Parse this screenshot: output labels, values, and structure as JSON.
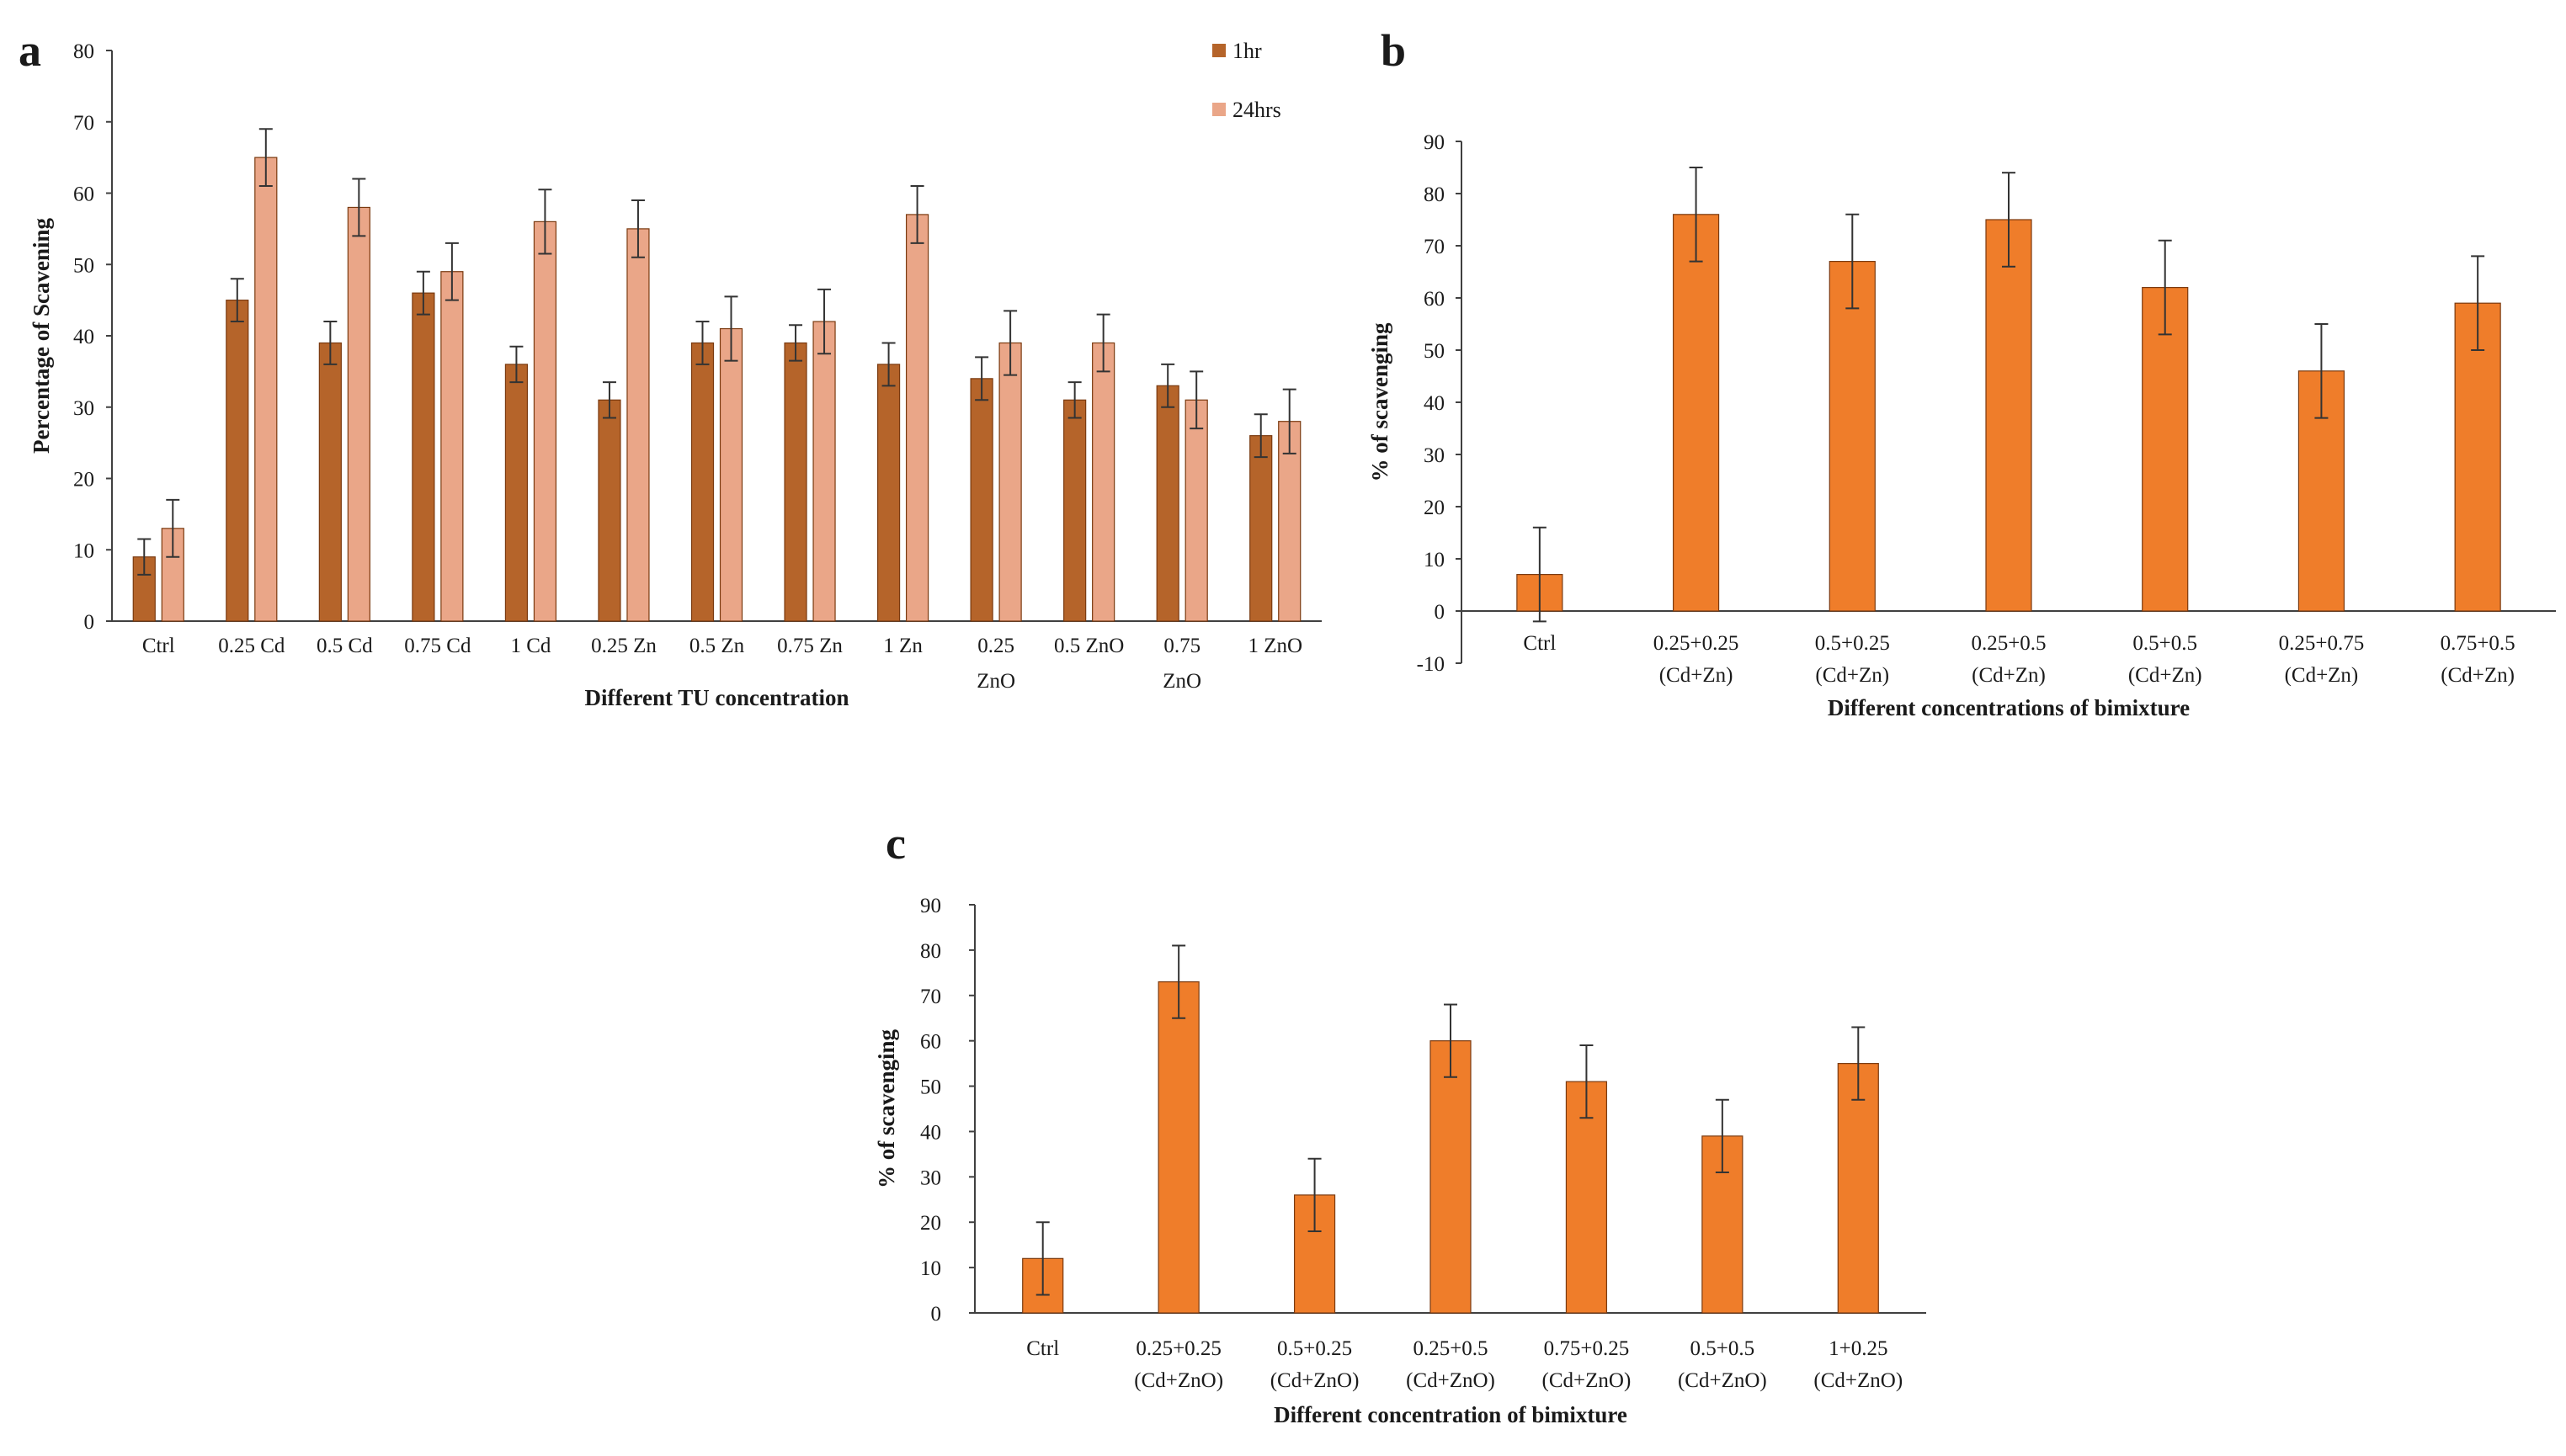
{
  "colors": {
    "bar_1hr": "#b5642a",
    "bar_24hrs": "#eaa688",
    "bar_orange": "#ef7d2a",
    "bar_stroke": "#7a3a10",
    "axis": "#404040",
    "error": "#333333"
  },
  "chart_data": [
    {
      "id": "a",
      "panel_label": "a",
      "type": "bar",
      "title": "",
      "xlabel": "Different TU concentration",
      "ylabel": "Percentage of Scavening",
      "ylim": [
        0,
        80
      ],
      "yticks": [
        0,
        10,
        20,
        30,
        40,
        50,
        60,
        70,
        80
      ],
      "legend_position": "top-right",
      "categories": [
        [
          "Ctrl"
        ],
        [
          "0.25 Cd"
        ],
        [
          "0.5 Cd"
        ],
        [
          "0.75 Cd"
        ],
        [
          "1 Cd"
        ],
        [
          "0.25 Zn"
        ],
        [
          "0.5 Zn"
        ],
        [
          "0.75 Zn"
        ],
        [
          "1 Zn"
        ],
        [
          "0.25",
          "ZnO"
        ],
        [
          "0.5 ZnO"
        ],
        [
          "0.75",
          "ZnO"
        ],
        [
          "1 ZnO"
        ]
      ],
      "series": [
        {
          "name": "1hr",
          "color_key": "bar_1hr",
          "values": [
            9,
            45,
            39,
            46,
            36,
            31,
            39,
            39,
            36,
            34,
            31,
            33,
            26
          ],
          "errors": [
            2.5,
            3,
            3,
            3,
            2.5,
            2.5,
            3,
            2.5,
            3,
            3,
            2.5,
            3,
            3
          ]
        },
        {
          "name": "24hrs",
          "color_key": "bar_24hrs",
          "values": [
            13,
            65,
            58,
            49,
            56,
            55,
            41,
            42,
            57,
            39,
            39,
            31,
            28
          ],
          "errors": [
            4,
            4,
            4,
            4,
            4.5,
            4,
            4.5,
            4.5,
            4,
            4.5,
            4,
            4,
            4.5
          ]
        }
      ]
    },
    {
      "id": "b",
      "panel_label": "b",
      "type": "bar",
      "title": "",
      "xlabel": "Different concentrations of bimixture",
      "ylabel": "% of scavenging",
      "ylim": [
        -10,
        90
      ],
      "yticks": [
        -10,
        0,
        10,
        20,
        30,
        40,
        50,
        60,
        70,
        80,
        90
      ],
      "categories": [
        [
          "Ctrl"
        ],
        [
          "0.25+0.25",
          "(Cd+Zn)"
        ],
        [
          "0.5+0.25",
          "(Cd+Zn)"
        ],
        [
          "0.25+0.5",
          "(Cd+Zn)"
        ],
        [
          "0.5+0.5",
          "(Cd+Zn)"
        ],
        [
          "0.25+0.75",
          "(Cd+Zn)"
        ],
        [
          "0.75+0.5",
          "(Cd+Zn)"
        ]
      ],
      "series": [
        {
          "name": "",
          "color_key": "bar_orange",
          "values": [
            7,
            76,
            67,
            75,
            62,
            46,
            59
          ],
          "errors": [
            9,
            9,
            9,
            9,
            9,
            9,
            9
          ]
        }
      ]
    },
    {
      "id": "c",
      "panel_label": "c",
      "type": "bar",
      "title": "",
      "xlabel": "Different concentration of bimixture",
      "ylabel": "% of scavenging",
      "ylim": [
        0,
        90
      ],
      "yticks": [
        0,
        10,
        20,
        30,
        40,
        50,
        60,
        70,
        80,
        90
      ],
      "categories": [
        [
          "Ctrl"
        ],
        [
          "0.25+0.25",
          "(Cd+ZnO)"
        ],
        [
          "0.5+0.25",
          "(Cd+ZnO)"
        ],
        [
          "0.25+0.5",
          "(Cd+ZnO)"
        ],
        [
          "0.75+0.25",
          "(Cd+ZnO)"
        ],
        [
          "0.5+0.5",
          "(Cd+ZnO)"
        ],
        [
          "1+0.25",
          "(Cd+ZnO)"
        ]
      ],
      "series": [
        {
          "name": "",
          "color_key": "bar_orange",
          "values": [
            12,
            73,
            26,
            60,
            51,
            39,
            55
          ],
          "errors": [
            8,
            8,
            8,
            8,
            8,
            8,
            8
          ]
        }
      ]
    }
  ]
}
